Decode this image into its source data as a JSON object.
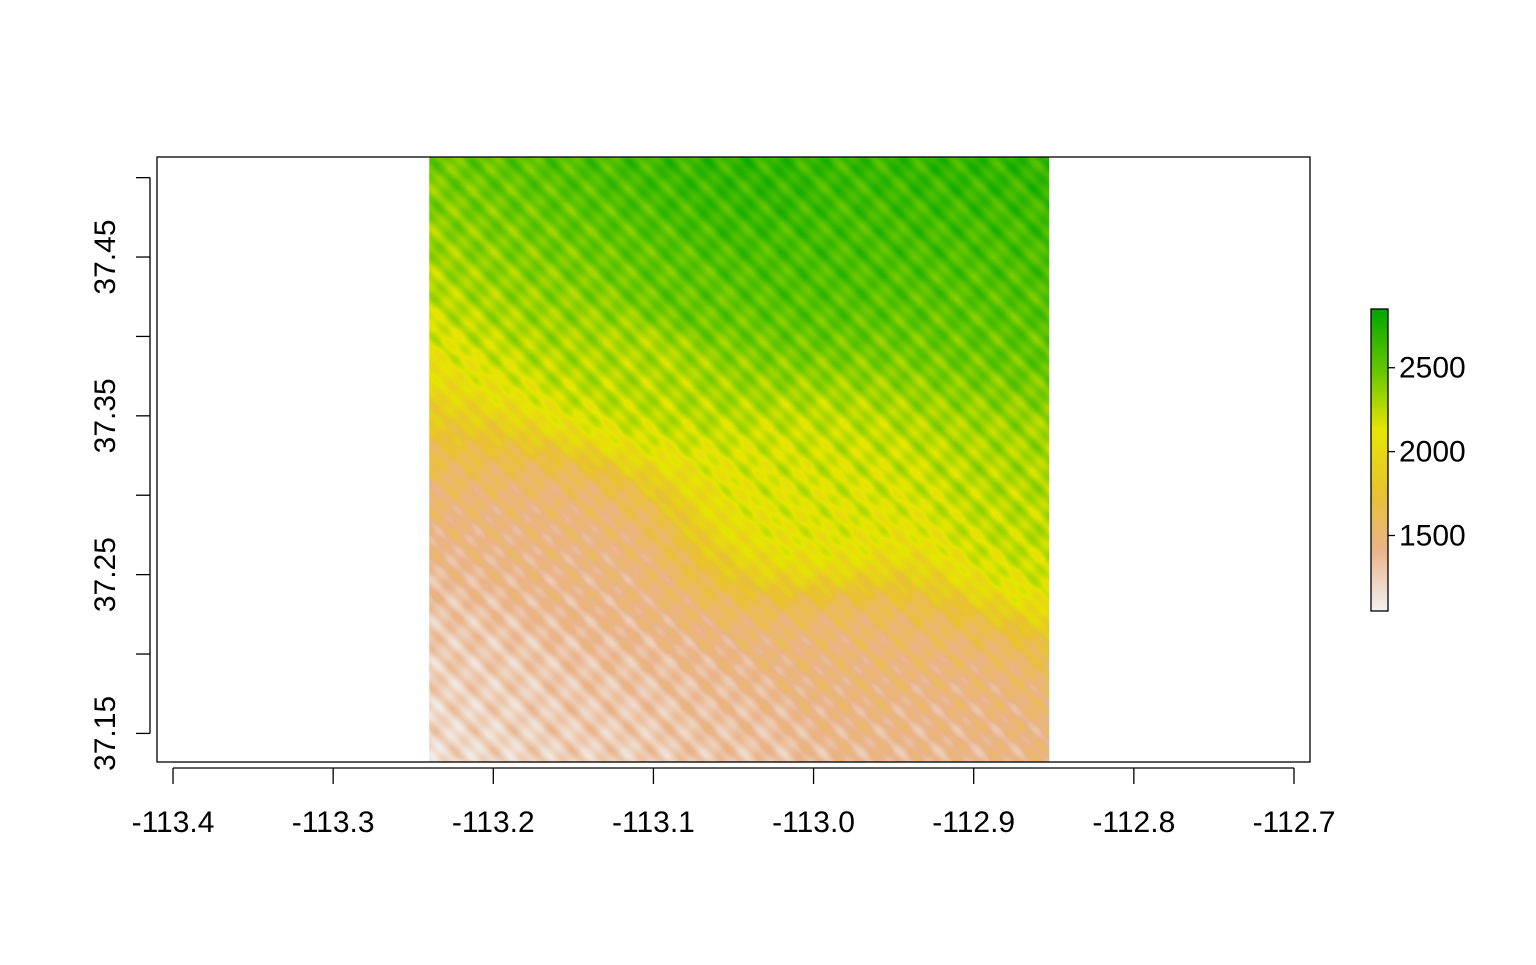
{
  "chart_data": {
    "type": "heatmap",
    "title": "",
    "xlabel": "",
    "ylabel": "",
    "xlim": [
      -113.41,
      -112.69
    ],
    "ylim": [
      37.132,
      37.513
    ],
    "x_ticks": [
      "-113.4",
      "-113.3",
      "-113.2",
      "-113.1",
      "-113.0",
      "-112.9",
      "-112.8",
      "-112.7"
    ],
    "x_tick_values": [
      -113.4,
      -113.3,
      -113.2,
      -113.1,
      -113.0,
      -112.9,
      -112.8,
      -112.7
    ],
    "y_ticks": [
      "37.15",
      "",
      "37.25",
      "",
      "37.35",
      "",
      "37.45",
      ""
    ],
    "y_tick_values": [
      37.15,
      37.2,
      37.25,
      37.3,
      37.35,
      37.4,
      37.45,
      37.5
    ],
    "raster_extent": {
      "xmin": -113.24,
      "xmax": -112.853,
      "ymin": 37.132,
      "ymax": 37.513
    },
    "legend": {
      "placement": "right",
      "min": 1050,
      "max": 2850,
      "ticks": [
        "1500",
        "2000",
        "2500"
      ],
      "tick_values": [
        1500,
        2000,
        2500
      ],
      "colors": [
        "#f2f2f2",
        "#eab38a",
        "#e8c32e",
        "#e6e600",
        "#63c600",
        "#00a600"
      ]
    },
    "terrain_features": [
      {
        "kind": "peak",
        "x": -113.04,
        "y": 37.48,
        "value": 2750
      },
      {
        "kind": "peak",
        "x": -113.08,
        "y": 37.42,
        "value": 2650
      },
      {
        "kind": "peak",
        "x": -113.02,
        "y": 37.45,
        "value": 2700
      },
      {
        "kind": "peak",
        "x": -112.96,
        "y": 37.49,
        "value": 2650
      },
      {
        "kind": "peak",
        "x": -112.87,
        "y": 37.43,
        "value": 2600
      },
      {
        "kind": "peak",
        "x": -112.86,
        "y": 37.29,
        "value": 2400
      },
      {
        "kind": "peak",
        "x": -113.0,
        "y": 37.3,
        "value": 2300
      },
      {
        "kind": "peak",
        "x": -113.1,
        "y": 37.39,
        "value": 2400
      },
      {
        "kind": "valley",
        "x": -113.21,
        "y": 37.19,
        "value": 1100
      },
      {
        "kind": "valley",
        "x": -113.12,
        "y": 37.16,
        "value": 1150
      },
      {
        "kind": "valley",
        "x": -113.05,
        "y": 37.15,
        "value": 1200
      },
      {
        "kind": "valley",
        "x": -113.16,
        "y": 37.26,
        "value": 1200
      },
      {
        "kind": "valley",
        "x": -112.98,
        "y": 37.18,
        "value": 1300
      },
      {
        "kind": "valley",
        "x": -112.92,
        "y": 37.16,
        "value": 1250
      }
    ]
  }
}
